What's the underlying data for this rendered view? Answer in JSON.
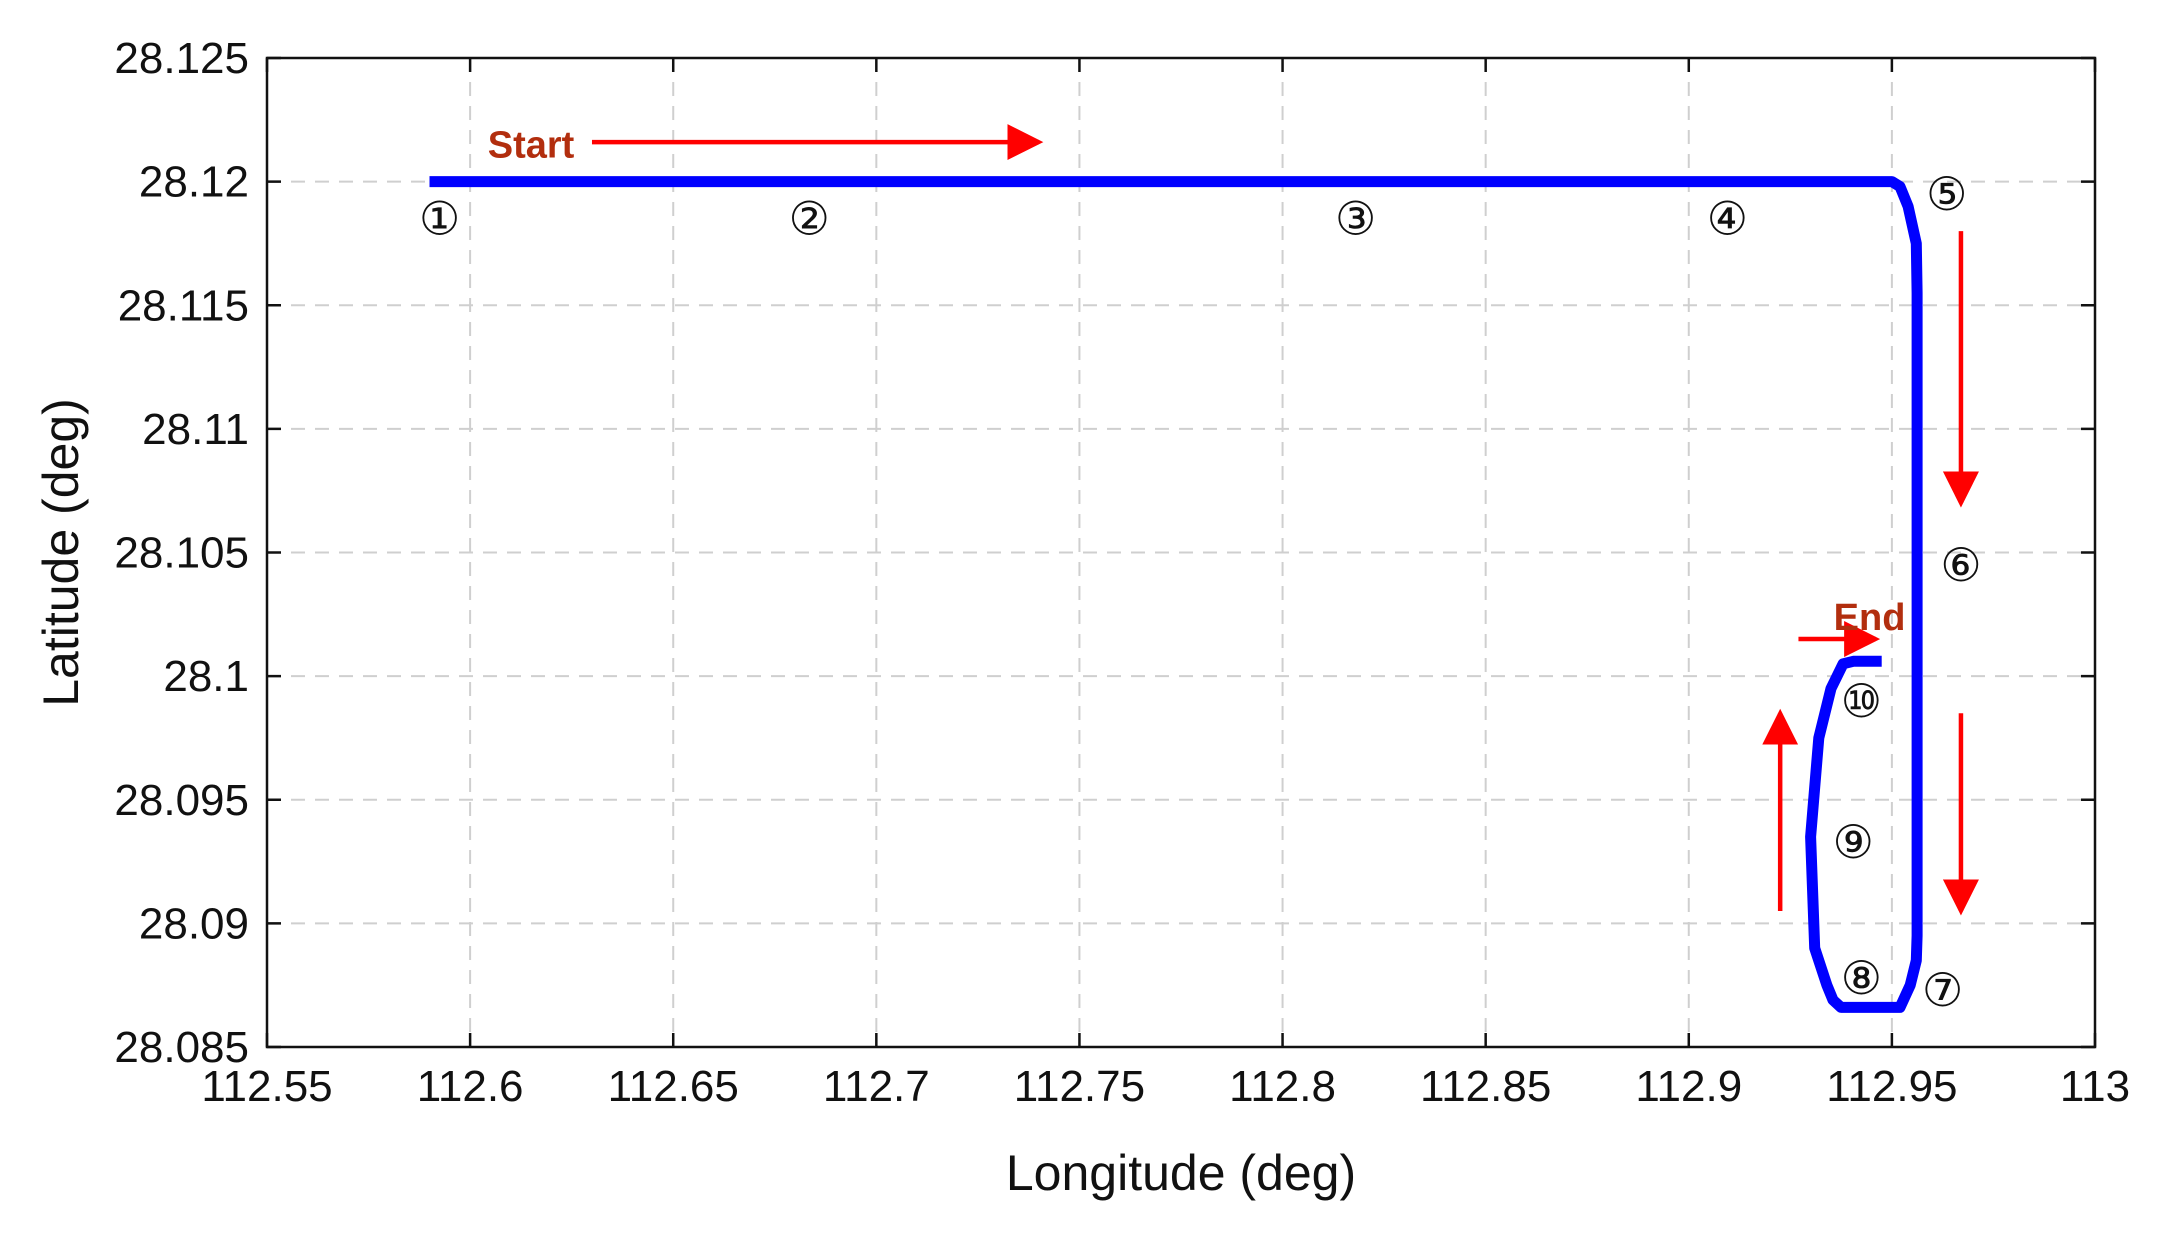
{
  "chart_data": {
    "type": "line",
    "xlabel": "Longitude (deg)",
    "ylabel": "Latitude (deg)",
    "xlim": [
      112.55,
      113
    ],
    "ylim": [
      28.085,
      28.125
    ],
    "grid": true,
    "x_ticks": [
      "112.55",
      "112.6",
      "112.65",
      "112.7",
      "112.75",
      "112.8",
      "112.85",
      "112.9",
      "112.95",
      "113"
    ],
    "y_ticks": [
      "28.125",
      "28.12",
      "28.115",
      "28.11",
      "28.105",
      "28.1",
      "28.095",
      "28.09",
      "28.085"
    ],
    "series": [
      {
        "color": "#0000ff",
        "x": [
          112.59,
          112.95,
          112.952,
          112.954,
          112.956,
          112.9562,
          112.9562,
          112.9562,
          112.9562,
          112.9562,
          112.9562,
          112.956,
          112.9545,
          112.952,
          112.9465,
          112.9375,
          112.9355,
          112.934,
          112.931,
          112.93,
          112.932,
          112.935,
          112.938,
          112.9405,
          112.9475
        ],
        "y": [
          28.12,
          28.12,
          28.1198,
          28.119,
          28.1175,
          28.1155,
          28.11,
          28.105,
          28.1,
          28.095,
          28.0895,
          28.0885,
          28.0875,
          28.0866,
          28.0866,
          28.0866,
          28.0869,
          28.0875,
          28.089,
          28.0935,
          28.0975,
          28.0995,
          28.1005,
          28.1006,
          28.1006
        ]
      }
    ],
    "markers": [
      {
        "text": "①",
        "x": 112.5925,
        "y": 28.1185
      },
      {
        "text": "②",
        "x": 112.6835,
        "y": 28.1185
      },
      {
        "text": "③",
        "x": 112.818,
        "y": 28.1185
      },
      {
        "text": "④",
        "x": 112.9095,
        "y": 28.1185
      },
      {
        "text": "⑤",
        "x": 112.9635,
        "y": 28.1195
      },
      {
        "text": "⑥",
        "x": 112.967,
        "y": 28.1045
      },
      {
        "text": "⑦",
        "x": 112.9625,
        "y": 28.0873
      },
      {
        "text": "⑧",
        "x": 112.9425,
        "y": 28.0878
      },
      {
        "text": "⑨",
        "x": 112.9405,
        "y": 28.0933
      },
      {
        "text": "⑩",
        "x": 112.9425,
        "y": 28.099
      }
    ],
    "annotations": [
      {
        "text": "Start",
        "x": 112.615,
        "y": 28.1215,
        "color": "#b22e0e"
      },
      {
        "text": "End",
        "x": 112.9445,
        "y": 28.1024,
        "color": "#b22e0e"
      }
    ],
    "arrows": [
      {
        "from": [
          112.63,
          28.1216
        ],
        "to": [
          112.74,
          28.1216
        ],
        "color": "#ff0000"
      },
      {
        "from": [
          112.967,
          28.118
        ],
        "to": [
          112.967,
          28.107
        ],
        "color": "#ff0000"
      },
      {
        "from": [
          112.967,
          28.0985
        ],
        "to": [
          112.967,
          28.0905
        ],
        "color": "#ff0000"
      },
      {
        "from": [
          112.9225,
          28.0905
        ],
        "to": [
          112.9225,
          28.0985
        ],
        "color": "#ff0000"
      },
      {
        "from": [
          112.927,
          28.1015
        ],
        "to": [
          112.946,
          28.1015
        ],
        "color": "#ff0000"
      }
    ]
  }
}
